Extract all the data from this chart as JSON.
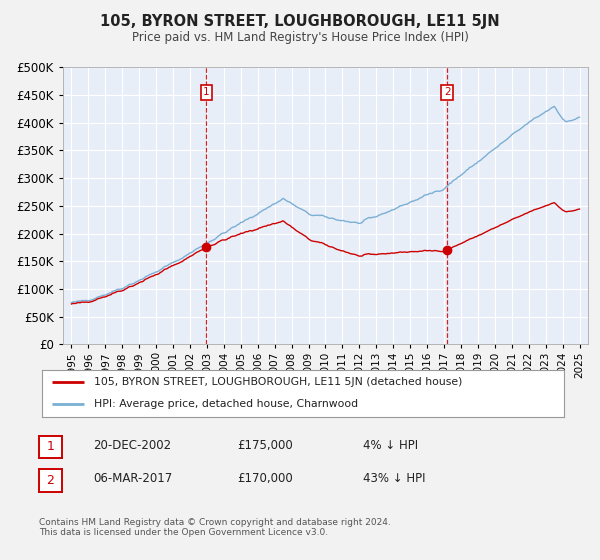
{
  "title": "105, BYRON STREET, LOUGHBOROUGH, LE11 5JN",
  "subtitle": "Price paid vs. HM Land Registry's House Price Index (HPI)",
  "legend_house": "105, BYRON STREET, LOUGHBOROUGH, LE11 5JN (detached house)",
  "legend_hpi": "HPI: Average price, detached house, Charnwood",
  "footnote": "Contains HM Land Registry data © Crown copyright and database right 2024.\nThis data is licensed under the Open Government Licence v3.0.",
  "sale1_date": "20-DEC-2002",
  "sale1_price": "£175,000",
  "sale1_hpi": "4% ↓ HPI",
  "sale1_x": 2002.97,
  "sale1_y": 175000,
  "sale2_date": "06-MAR-2017",
  "sale2_price": "£170,000",
  "sale2_hpi": "43% ↓ HPI",
  "sale2_x": 2017.18,
  "sale2_y": 170000,
  "house_color": "#cc0000",
  "hpi_color": "#7bafd4",
  "vline_color": "#cc0000",
  "ylim": [
    0,
    500000
  ],
  "yticks": [
    0,
    50000,
    100000,
    150000,
    200000,
    250000,
    300000,
    350000,
    400000,
    450000,
    500000
  ],
  "xlim": [
    1994.5,
    2025.5
  ],
  "plot_bg": "#e8eef8",
  "grid_color": "#ffffff",
  "fig_bg": "#f2f2f2"
}
